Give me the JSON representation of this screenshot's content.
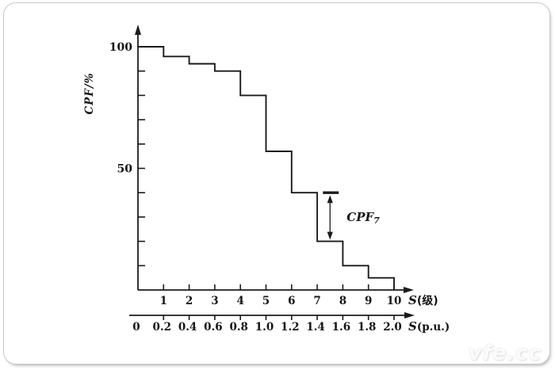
{
  "page": {
    "watermark": "vfe.cc"
  },
  "chart_data": {
    "type": "step",
    "title": "",
    "grid": false,
    "legend": false,
    "y_axis": {
      "label": "CPF/%",
      "range": [
        0,
        100
      ],
      "ticks": [
        10,
        20,
        30,
        40,
        50,
        60,
        70,
        80,
        90,
        100
      ],
      "labeled_ticks": [
        100,
        50
      ]
    },
    "x_axis_levels": {
      "symbol": "S",
      "unit": "(级)",
      "ticks": [
        1,
        2,
        3,
        4,
        5,
        6,
        7,
        8,
        9,
        10
      ]
    },
    "x_axis_pu": {
      "symbol": "S",
      "unit": "(p.u.)",
      "tick_labels": [
        "0",
        "0.2",
        "0.4",
        "0.6",
        "0.8",
        "1.0",
        "1.2",
        "1.4",
        "1.6",
        "1.8",
        "2.0"
      ]
    },
    "series": [
      {
        "name": "CPF",
        "levels": [
          1,
          2,
          3,
          4,
          5,
          6,
          7,
          8,
          9,
          10
        ],
        "values": [
          100,
          96,
          93,
          90,
          80,
          57,
          40,
          20,
          10,
          5
        ]
      }
    ],
    "annotation": {
      "label_main": "CPF",
      "label_sub": "7",
      "at_level": 7.5,
      "from_value": 40,
      "to_value": 20
    }
  }
}
